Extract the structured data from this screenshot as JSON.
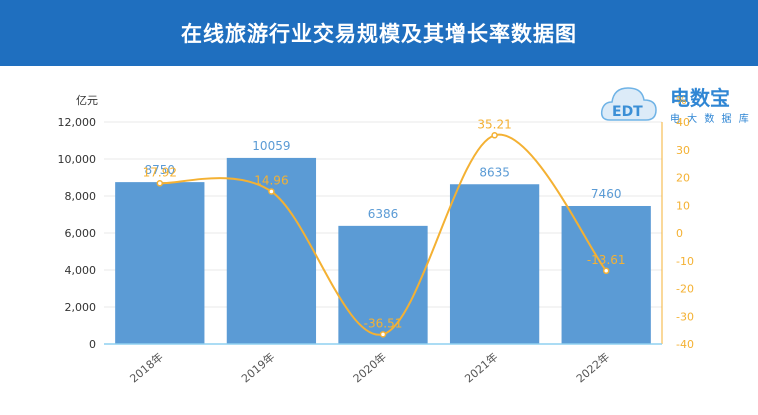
{
  "header": {
    "title": "在线旅游行业交易规模及其增长率数据图"
  },
  "logo": {
    "brand": "电数宝",
    "sub": "电 大 数 据 库",
    "mark": "EDT"
  },
  "chart_data": {
    "type": "bar",
    "categories": [
      "2018年",
      "2019年",
      "2020年",
      "2021年",
      "2022年"
    ],
    "series": [
      {
        "values": [
          8750,
          10059,
          6386,
          8635,
          7460
        ],
        "labels": [
          "8750",
          "10059",
          "6386",
          "8635",
          "7460"
        ]
      },
      {
        "type": "line",
        "values": [
          17.92,
          14.96,
          -36.51,
          35.21,
          -13.61
        ],
        "labels": [
          "17.92",
          "14.96",
          "-36.51",
          "35.21",
          "-13.61"
        ]
      }
    ],
    "left_axis": {
      "unit": "亿元",
      "ylim": [
        0,
        12000
      ],
      "ticks": [
        "0",
        "2,000",
        "4,000",
        "6,000",
        "8,000",
        "10,000",
        "12,000"
      ]
    },
    "right_axis": {
      "unit": "%",
      "ylim": [
        -40,
        40
      ],
      "ticks": [
        "-40",
        "-30",
        "-20",
        "-10",
        "0",
        "10",
        "20",
        "30",
        "40"
      ]
    },
    "grid": true,
    "colors": {
      "bar": "#5b9bd5",
      "line": "#f4b133",
      "bar_label": "#5b9bd5",
      "line_label": "#f4b133",
      "axis_right": "#f4b133",
      "axis_left": "#333333",
      "grid": "#e8e8e8",
      "baseline": "#8fd0f0"
    }
  }
}
